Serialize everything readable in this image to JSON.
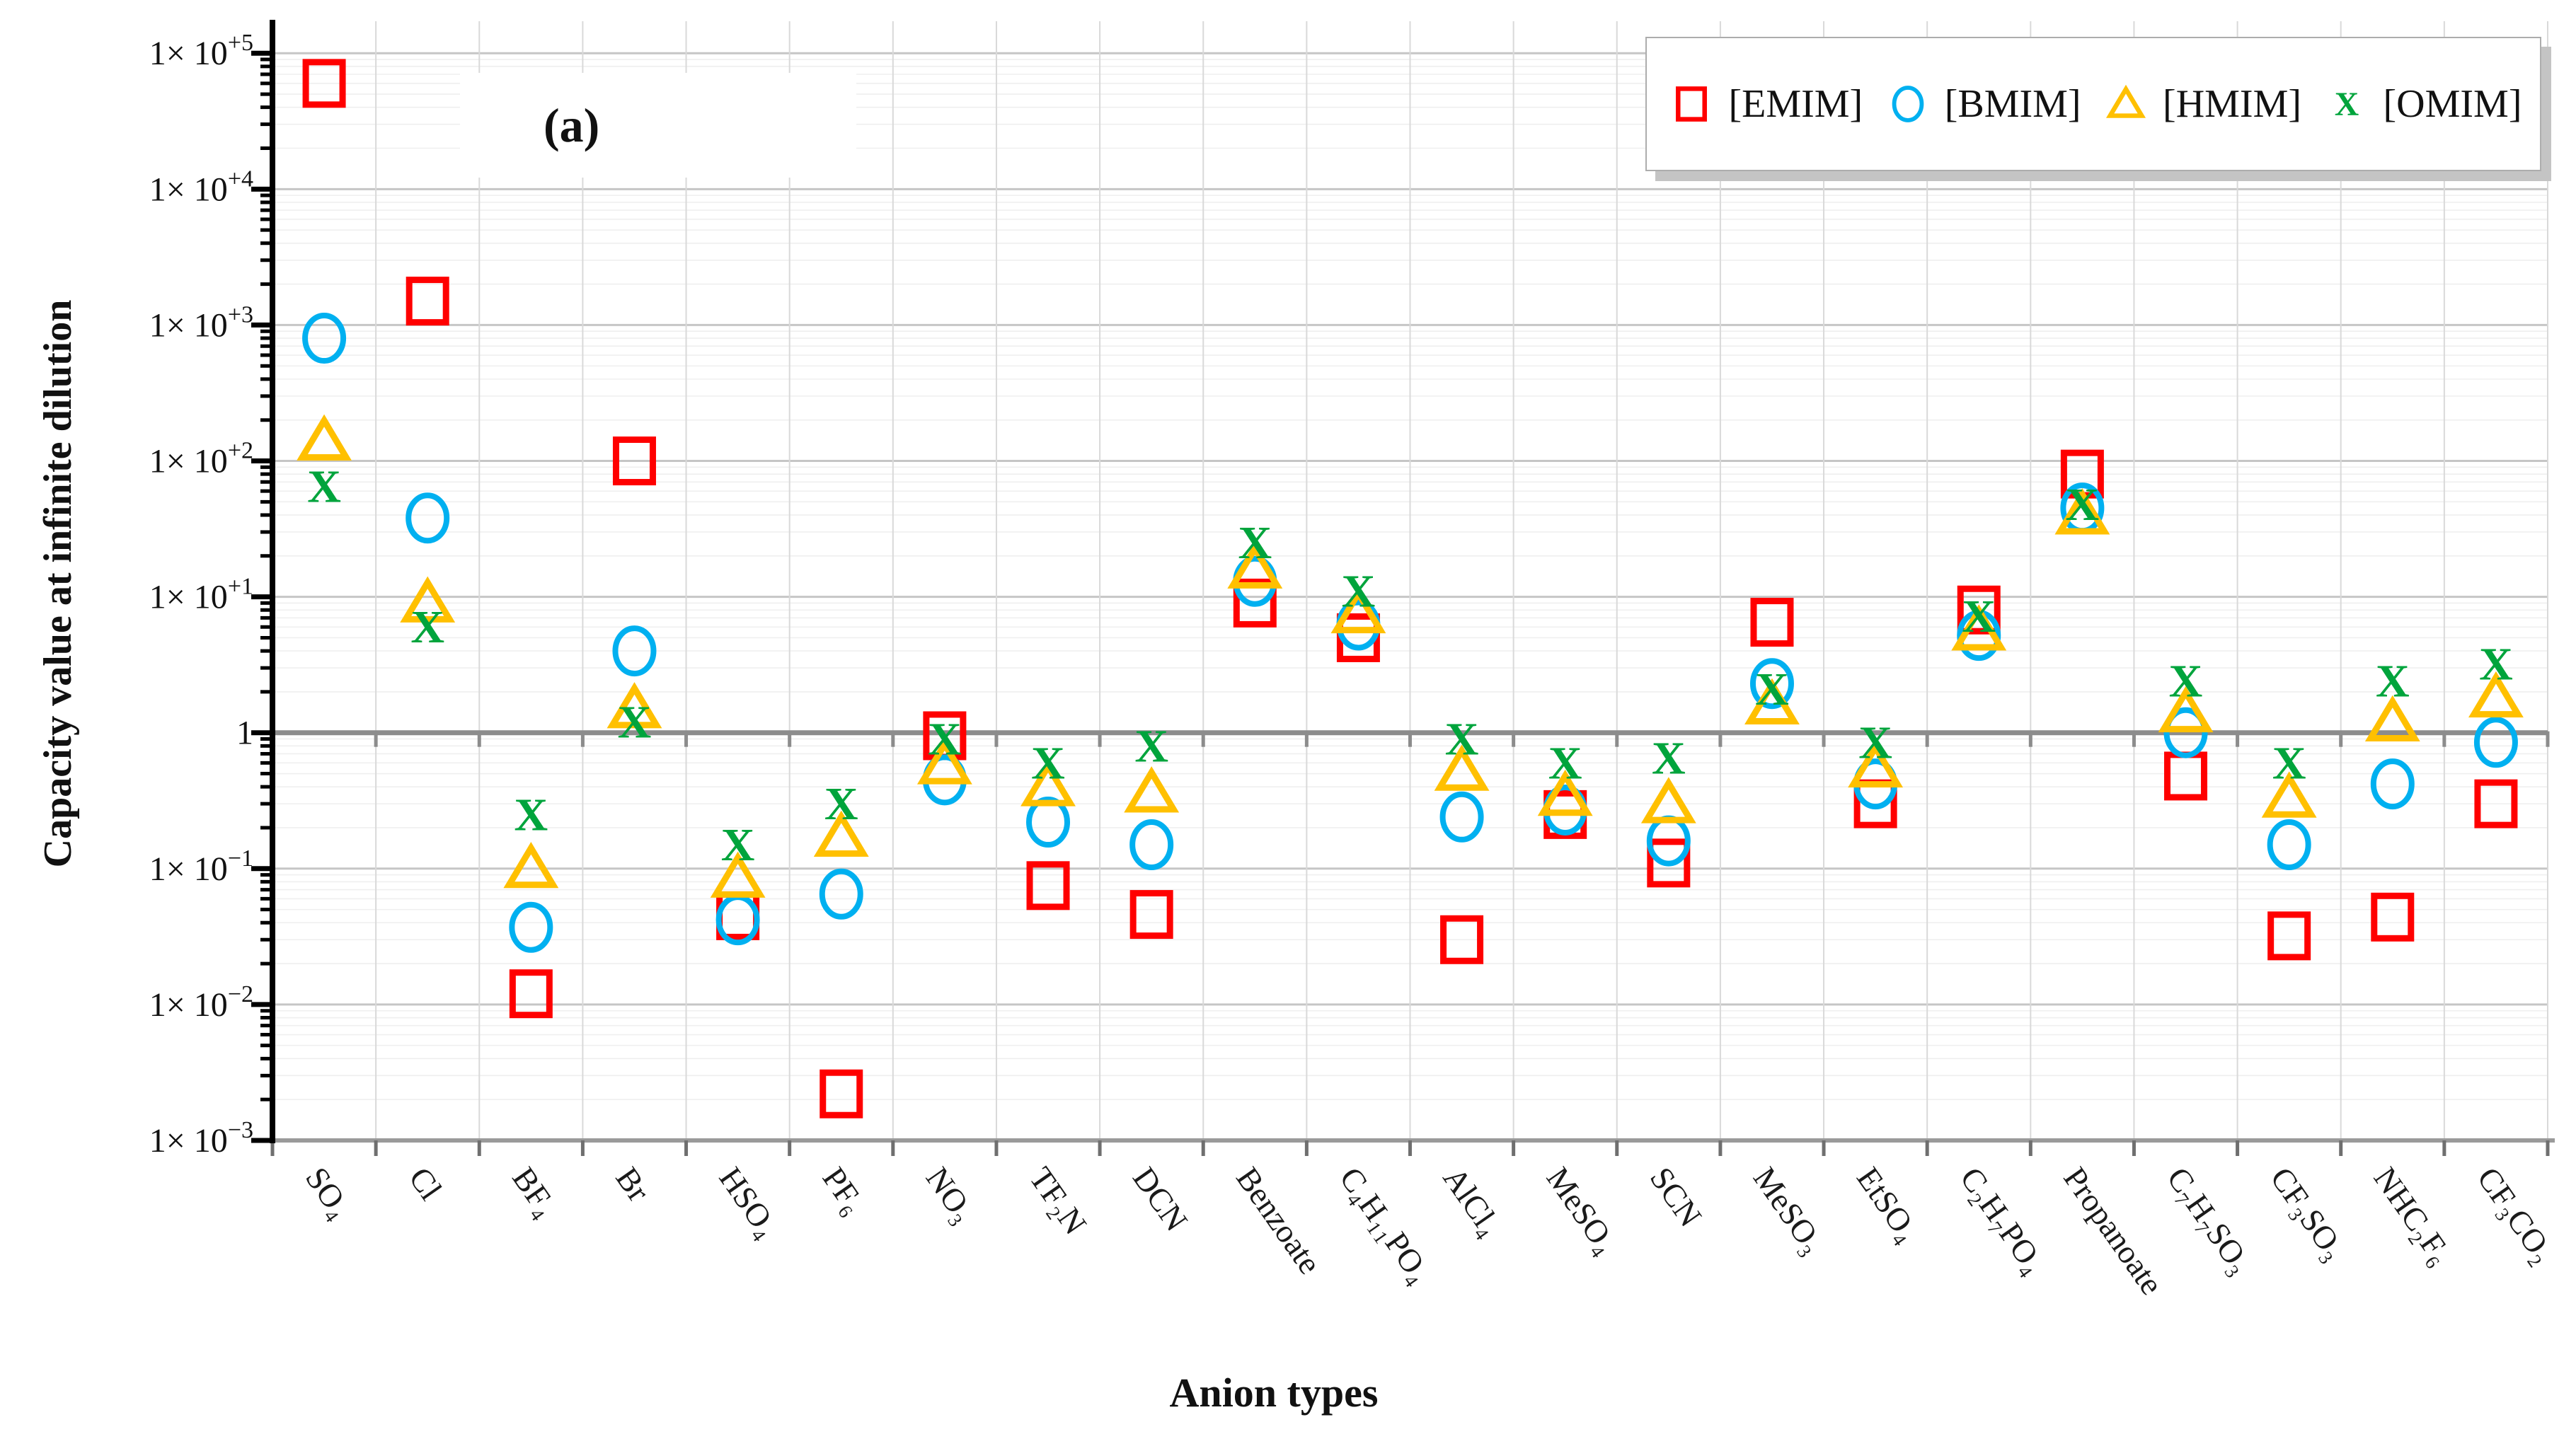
{
  "figure": {
    "annotation": "(a)"
  },
  "chart_data": {
    "type": "scatter",
    "y_scale": "log",
    "xlabel": "Anion types",
    "ylabel": "Capacity value at infinite dilution",
    "ylim": [
      0.001,
      172000
    ],
    "grid": true,
    "legend_position": "top-right",
    "y_ticks": [
      {
        "value": 100000,
        "base": "1× 10",
        "sup": "+5"
      },
      {
        "value": 10000,
        "base": "1× 10",
        "sup": "+4"
      },
      {
        "value": 1000,
        "base": "1× 10",
        "sup": "+3"
      },
      {
        "value": 100,
        "base": "1× 10",
        "sup": "+2"
      },
      {
        "value": 10,
        "base": "1× 10",
        "sup": "+1"
      },
      {
        "value": 1,
        "base": "1",
        "sup": ""
      },
      {
        "value": 0.1,
        "base": "1× 10",
        "sup": "−1"
      },
      {
        "value": 0.01,
        "base": "1× 10",
        "sup": "−2"
      },
      {
        "value": 0.001,
        "base": "1× 10",
        "sup": "−3"
      }
    ],
    "categories": [
      "SO₄",
      "Cl",
      "BF₄",
      "Br",
      "HSO₄",
      "PF₆",
      "NO₃",
      "TF₂N",
      "DCN",
      "Benzoate",
      "C₄H₁₁PO₄",
      "AlCl₄",
      "MeSO₄",
      "SCN",
      "MeSO₃",
      "EtSO₄",
      "C₂H₇PO₄",
      "Propanoate",
      "C₇H₇SO₃",
      "CF₃SO₃",
      "NHC₂F₆",
      "CF₃CO₂"
    ],
    "series": [
      {
        "name": "[EMIM]",
        "marker": "square",
        "color": "#FF0000",
        "values": [
          60000,
          1500,
          0.012,
          100,
          0.045,
          0.0022,
          0.95,
          0.075,
          0.046,
          9,
          5,
          0.03,
          0.25,
          0.11,
          6.5,
          0.3,
          8,
          80,
          0.48,
          0.032,
          0.044,
          0.3
        ]
      },
      {
        "name": "[BMIM]",
        "marker": "circle",
        "color": "#00B0F0",
        "values": [
          800,
          38,
          0.037,
          4,
          0.042,
          0.065,
          0.45,
          0.22,
          0.15,
          13,
          6.2,
          0.24,
          0.27,
          0.16,
          2.3,
          0.42,
          5.2,
          45,
          1.0,
          0.15,
          0.42,
          0.85
        ]
      },
      {
        "name": "[HMIM]",
        "marker": "triangle",
        "color": "#FFC000",
        "values": [
          140,
          9,
          0.1,
          1.5,
          0.085,
          0.17,
          0.58,
          0.4,
          0.36,
          16,
          7.5,
          0.52,
          0.34,
          0.3,
          1.6,
          0.55,
          5.6,
          40,
          1.4,
          0.33,
          1.2,
          1.8
        ]
      },
      {
        "name": "[OMIM]",
        "marker": "x",
        "color": "#00A43C",
        "values": [
          65,
          6,
          0.25,
          1.2,
          0.15,
          0.3,
          0.9,
          0.6,
          0.8,
          25,
          11,
          0.9,
          0.6,
          0.65,
          2.1,
          0.85,
          7.2,
          48,
          2.4,
          0.6,
          2.4,
          3.2
        ]
      }
    ]
  }
}
